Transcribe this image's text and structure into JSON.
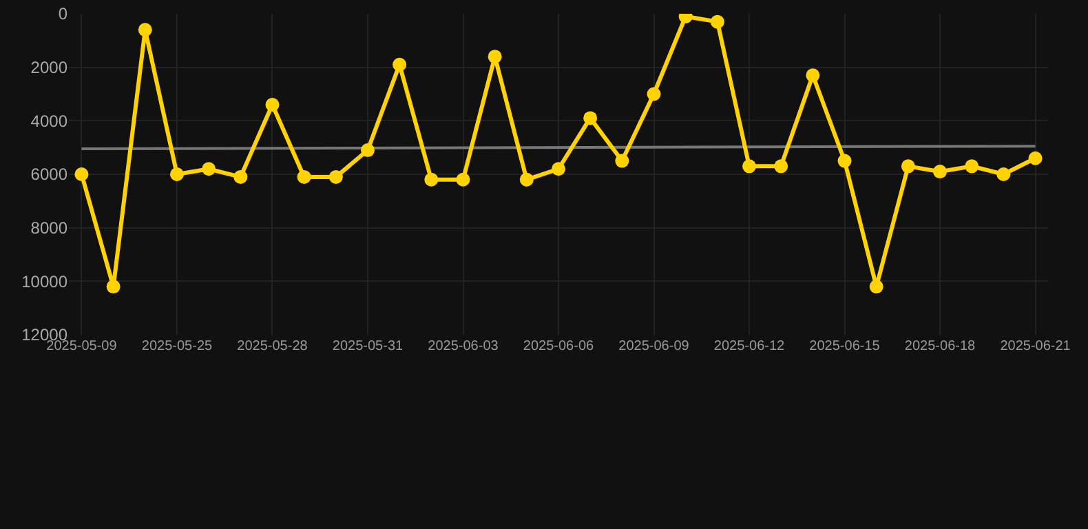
{
  "chart_data": {
    "type": "line",
    "categories": [
      "2025-05-09",
      null,
      null,
      "2025-05-25",
      null,
      null,
      "2025-05-28",
      null,
      null,
      "2025-05-31",
      null,
      null,
      "2025-06-03",
      null,
      null,
      "2025-06-06",
      null,
      null,
      "2025-06-09",
      null,
      null,
      "2025-06-12",
      null,
      null,
      "2025-06-15",
      null,
      null,
      "2025-06-18",
      null,
      null,
      "2025-06-21"
    ],
    "series": [
      {
        "color": "#ffd200",
        "marker": "circle",
        "values": [
          6000,
          10200,
          600,
          6000,
          5800,
          6100,
          3400,
          6100,
          6100,
          5100,
          1900,
          6200,
          6200,
          1600,
          6200,
          5800,
          3900,
          5500,
          3000,
          100,
          300,
          5700,
          5700,
          2300,
          5500,
          10200,
          5700,
          5900,
          5700,
          6000,
          5400
        ]
      },
      {
        "type": "line",
        "color": "#777777",
        "marker": "none",
        "values": [
          5050,
          null,
          null,
          null,
          null,
          null,
          null,
          null,
          null,
          null,
          null,
          null,
          null,
          null,
          null,
          null,
          null,
          null,
          null,
          null,
          null,
          null,
          null,
          null,
          null,
          null,
          null,
          null,
          null,
          null,
          4950
        ]
      }
    ],
    "ylim": [
      12000,
      0
    ],
    "yticks": [
      0,
      2000,
      4000,
      6000,
      8000,
      10000,
      12000
    ],
    "grid": true
  }
}
